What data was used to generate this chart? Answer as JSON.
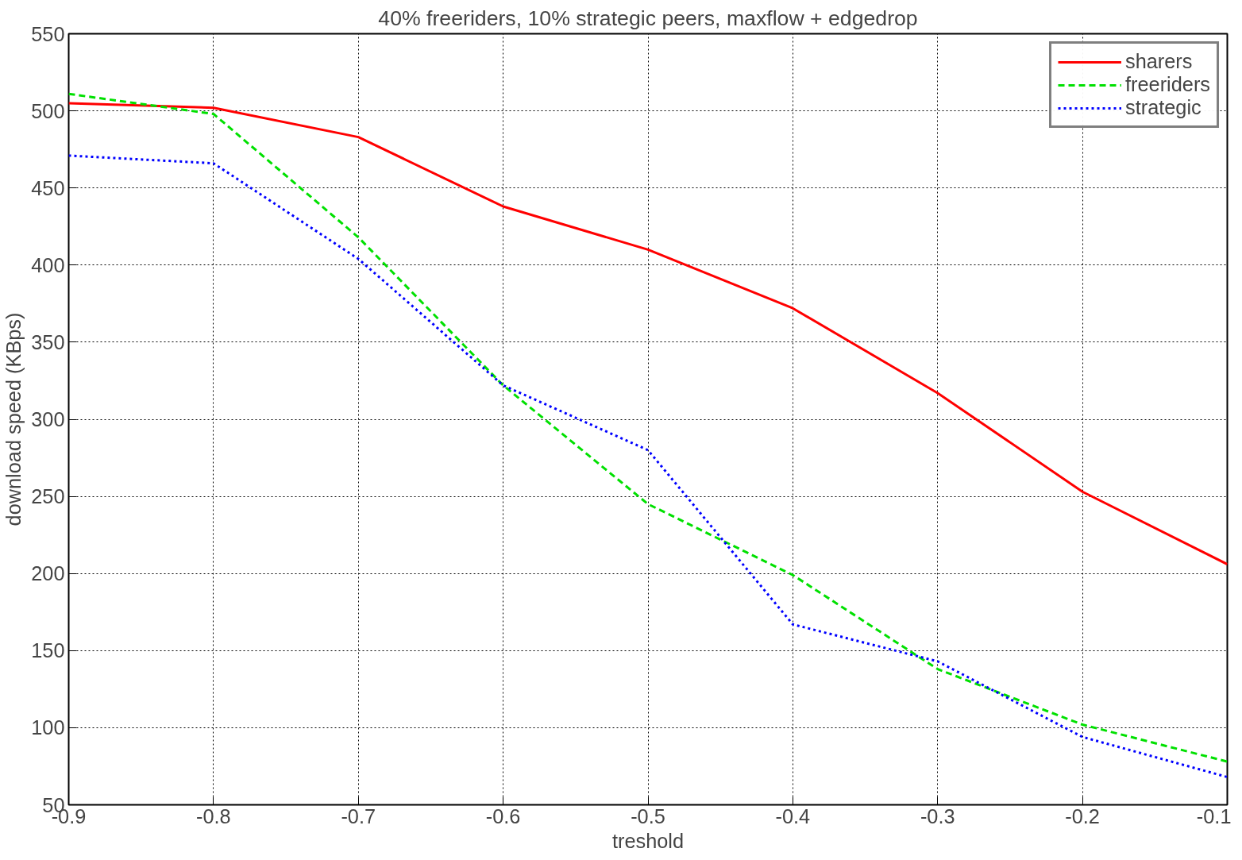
{
  "chart_data": {
    "type": "line",
    "title": "40% freeriders, 10% strategic peers, maxflow + edgedrop",
    "xlabel": "treshold",
    "ylabel": "download speed (KBps)",
    "x": [
      -0.9,
      -0.8,
      -0.7,
      -0.6,
      -0.5,
      -0.4,
      -0.3,
      -0.2,
      -0.1
    ],
    "series": [
      {
        "name": "sharers",
        "color": "#ff0000",
        "line_style": "solid",
        "values": [
          505,
          502,
          483,
          438,
          410,
          372,
          317,
          253,
          206
        ]
      },
      {
        "name": "freeriders",
        "color": "#00e000",
        "line_style": "dashed",
        "values": [
          511,
          498,
          418,
          322,
          245,
          199,
          138,
          102,
          78
        ]
      },
      {
        "name": "strategic",
        "color": "#0000ff",
        "line_style": "dotted",
        "values": [
          471,
          466,
          404,
          322,
          280,
          167,
          143,
          94,
          68
        ]
      }
    ],
    "xlim": [
      -0.9,
      -0.1
    ],
    "ylim": [
      50,
      550
    ],
    "xticks": [
      {
        "value": -0.9,
        "label": "-0.9"
      },
      {
        "value": -0.8,
        "label": "-0.8"
      },
      {
        "value": -0.7,
        "label": "-0.7"
      },
      {
        "value": -0.6,
        "label": "-0.6"
      },
      {
        "value": -0.5,
        "label": "-0.5"
      },
      {
        "value": -0.4,
        "label": "-0.4"
      },
      {
        "value": -0.3,
        "label": "-0.3"
      },
      {
        "value": -0.2,
        "label": "-0.2"
      },
      {
        "value": -0.1,
        "label": "-0.1"
      }
    ],
    "yticks": [
      50,
      100,
      150,
      200,
      250,
      300,
      350,
      400,
      450,
      500,
      550
    ],
    "grid": true,
    "legend": "top right",
    "marker": "none"
  }
}
